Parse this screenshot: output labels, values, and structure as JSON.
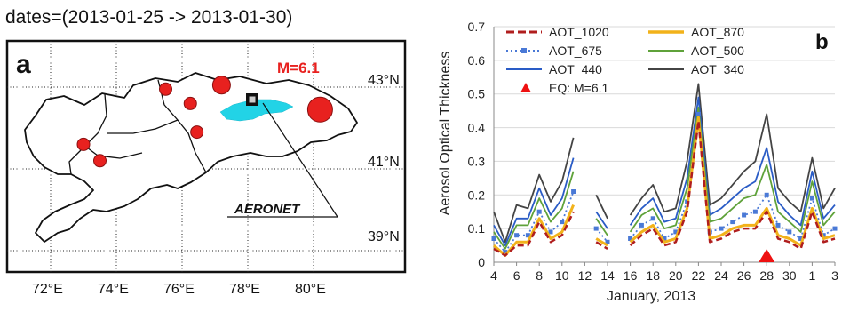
{
  "map": {
    "date_label": "dates=(2013-01-25 -> 2013-01-30)",
    "panel_label": "a",
    "magnitude_label": "M=6.1",
    "station_label": "AERONET",
    "lat_labels": [
      "43°N",
      "41°N",
      "39°N"
    ],
    "lon_labels": [
      "72°E",
      "74°E",
      "76°E",
      "78°E",
      "80°E"
    ],
    "colors": {
      "earthquake": "#e8211f",
      "anomaly": "#22d3e6",
      "station": "#000000"
    },
    "earthquakes": [
      {
        "lon": 75.5,
        "lat": 42.95,
        "size": "small"
      },
      {
        "lon": 76.25,
        "lat": 42.6,
        "size": "small"
      },
      {
        "lon": 77.2,
        "lat": 43.05,
        "size": "medium"
      },
      {
        "lon": 76.45,
        "lat": 41.9,
        "size": "small"
      },
      {
        "lon": 73.0,
        "lat": 41.6,
        "size": "small"
      },
      {
        "lon": 73.5,
        "lat": 41.2,
        "size": "small"
      },
      {
        "lon": 80.2,
        "lat": 42.45,
        "size": "large"
      }
    ]
  },
  "chart_data": {
    "type": "line",
    "panel_label": "b",
    "ylabel": "Aerosol Optical Thickness",
    "xlabel": "January, 2013",
    "ylim": [
      0,
      0.7
    ],
    "yticks": [
      "0",
      "0.1",
      "0.2",
      "0.3",
      "0.4",
      "0.5",
      "0.6",
      "0.7"
    ],
    "xtick_labels": [
      "4",
      "6",
      "8",
      "10",
      "12",
      "14",
      "16",
      "18",
      "20",
      "22",
      "24",
      "26",
      "28",
      "30",
      "1",
      "3"
    ],
    "grid": true,
    "legend_position": "top",
    "eq_marker": {
      "label": "EQ: M=6.1",
      "day": 28,
      "color": "#ee1111"
    },
    "segments": [
      {
        "start_day": 4,
        "end_day": 11
      },
      {
        "start_day": 13,
        "end_day": 14
      },
      {
        "start_day": 16,
        "end_day": 34
      }
    ],
    "series": [
      {
        "name": "AOT_340",
        "color": "#444444",
        "dash": "solid",
        "values": [
          0.15,
          0.06,
          0.17,
          0.16,
          0.26,
          0.18,
          0.24,
          0.37,
          0.2,
          0.13,
          0.14,
          0.19,
          0.23,
          0.15,
          0.16,
          0.3,
          0.53,
          0.17,
          0.19,
          0.23,
          0.27,
          0.3,
          0.44,
          0.22,
          0.18,
          0.15,
          0.31,
          0.16,
          0.22,
          0.22
        ]
      },
      {
        "name": "AOT_440",
        "color": "#2a5cc6",
        "dash": "solid",
        "values": [
          0.11,
          0.05,
          0.13,
          0.13,
          0.22,
          0.14,
          0.19,
          0.31,
          0.15,
          0.1,
          0.11,
          0.16,
          0.19,
          0.12,
          0.13,
          0.25,
          0.49,
          0.14,
          0.16,
          0.19,
          0.22,
          0.24,
          0.34,
          0.18,
          0.14,
          0.11,
          0.27,
          0.13,
          0.17,
          0.16
        ]
      },
      {
        "name": "AOT_500",
        "color": "#5fa23a",
        "dash": "solid",
        "values": [
          0.09,
          0.04,
          0.11,
          0.11,
          0.19,
          0.12,
          0.16,
          0.27,
          0.13,
          0.08,
          0.09,
          0.14,
          0.16,
          0.1,
          0.11,
          0.22,
          0.46,
          0.12,
          0.13,
          0.16,
          0.19,
          0.2,
          0.29,
          0.15,
          0.12,
          0.09,
          0.24,
          0.11,
          0.15,
          0.14
        ]
      },
      {
        "name": "AOT_675",
        "color": "#4a79d6",
        "dash": "dot-square",
        "values": [
          0.07,
          0.03,
          0.08,
          0.08,
          0.15,
          0.09,
          0.12,
          0.21,
          0.1,
          0.06,
          0.07,
          0.11,
          0.13,
          0.07,
          0.09,
          0.18,
          0.44,
          0.09,
          0.1,
          0.12,
          0.14,
          0.15,
          0.2,
          0.11,
          0.09,
          0.07,
          0.19,
          0.08,
          0.1,
          0.09
        ]
      },
      {
        "name": "AOT_870",
        "color": "#f2b21a",
        "dash": "solid",
        "values": [
          0.05,
          0.02,
          0.06,
          0.06,
          0.13,
          0.07,
          0.09,
          0.17,
          0.07,
          0.05,
          0.06,
          0.09,
          0.11,
          0.06,
          0.07,
          0.16,
          0.43,
          0.07,
          0.08,
          0.1,
          0.11,
          0.11,
          0.16,
          0.08,
          0.07,
          0.05,
          0.16,
          0.07,
          0.08,
          0.07
        ]
      },
      {
        "name": "AOT_1020",
        "color": "#b01e1e",
        "dash": "dashed",
        "values": [
          0.04,
          0.02,
          0.05,
          0.05,
          0.12,
          0.06,
          0.08,
          0.15,
          0.06,
          0.04,
          0.05,
          0.08,
          0.1,
          0.05,
          0.06,
          0.15,
          0.42,
          0.06,
          0.07,
          0.09,
          0.1,
          0.1,
          0.15,
          0.07,
          0.06,
          0.04,
          0.15,
          0.06,
          0.07,
          0.06
        ]
      }
    ]
  }
}
